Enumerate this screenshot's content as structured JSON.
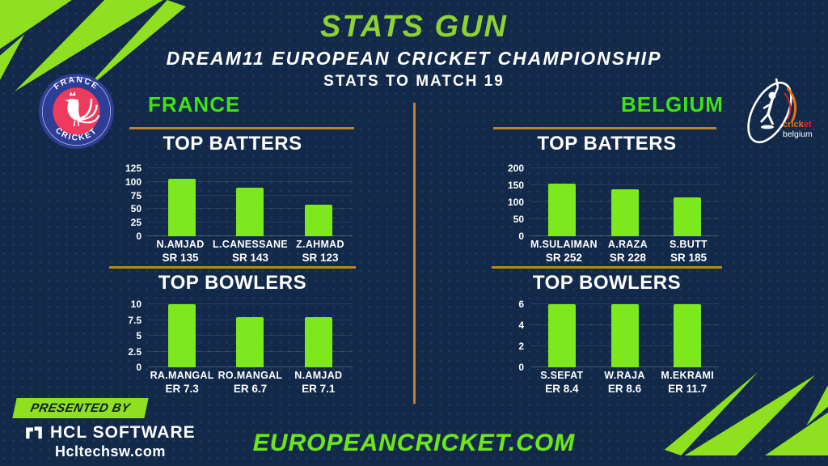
{
  "colors": {
    "background": "#12294a",
    "bar_green": "#7de81e",
    "title_green": "#8ed133",
    "team_green": "#3fe315",
    "divider_orange": "#bf841f",
    "badge_green": "#8fe021",
    "france_logo_blue": "#2e3d95",
    "france_logo_red": "#ee3a5d",
    "belgium_logo_orange": "#e87312",
    "belgium_logo_red": "#d22630"
  },
  "header": {
    "title": "STATS GUN",
    "subtitle": "DREAM11 EUROPEAN CRICKET CHAMPIONSHIP",
    "match_line": "STATS TO MATCH 19"
  },
  "teams": {
    "france": {
      "name": "FRANCE",
      "logo_top_text": "FRANCE",
      "logo_bottom_text": "CRICKET"
    },
    "belgium": {
      "name": "BELGIUM",
      "logo_word_part1": "crick",
      "logo_word_part2": "et",
      "logo_line2": "belgium"
    }
  },
  "chart_data": [
    {
      "id": "france_top_batters",
      "type": "bar",
      "title": "TOP BATTERS",
      "team": "FRANCE",
      "categories": [
        "N.AMJAD",
        "L.CANESSANE",
        "Z.AHMAD"
      ],
      "sublabels": [
        "SR 135",
        "SR 143",
        "SR 123"
      ],
      "values": [
        105,
        90,
        58
      ],
      "yticks": [
        0,
        25,
        50,
        75,
        100,
        125
      ],
      "ylim": [
        0,
        125
      ],
      "grid": true,
      "bar_color": "#7de81e"
    },
    {
      "id": "france_top_bowlers",
      "type": "bar",
      "title": "TOP BOWLERS",
      "team": "FRANCE",
      "categories": [
        "RA.MANGAL",
        "RO.MANGAL",
        "N.AMJAD"
      ],
      "sublabels": [
        "ER 7.3",
        "ER 6.7",
        "ER 7.1"
      ],
      "values": [
        10,
        8,
        8
      ],
      "yticks": [
        0,
        2.5,
        5,
        7.5,
        10
      ],
      "ylim": [
        0,
        10
      ],
      "grid": true,
      "bar_color": "#7de81e"
    },
    {
      "id": "belgium_top_batters",
      "type": "bar",
      "title": "TOP BATTERS",
      "team": "BELGIUM",
      "categories": [
        "M.SULAIMAN",
        "A.RAZA",
        "S.BUTT"
      ],
      "sublabels": [
        "SR 252",
        "SR 228",
        "SR 185"
      ],
      "values": [
        155,
        138,
        115
      ],
      "yticks": [
        0,
        50,
        100,
        150,
        200
      ],
      "ylim": [
        0,
        200
      ],
      "grid": true,
      "bar_color": "#7de81e"
    },
    {
      "id": "belgium_top_bowlers",
      "type": "bar",
      "title": "TOP BOWLERS",
      "team": "BELGIUM",
      "categories": [
        "S.SEFAT",
        "W.RAJA",
        "M.EKRAMI"
      ],
      "sublabels": [
        "ER 8.4",
        "ER 8.6",
        "ER 11.7"
      ],
      "values": [
        6,
        6,
        6
      ],
      "yticks": [
        0,
        2,
        4,
        6
      ],
      "ylim": [
        0,
        6
      ],
      "grid": true,
      "bar_color": "#7de81e"
    }
  ],
  "footer": {
    "presented_by": "PRESENTED BY",
    "sponsor": "HCL SOFTWARE",
    "sponsor_site": "Hcltechsw.com",
    "website": "EUROPEANCRICKET.COM"
  }
}
